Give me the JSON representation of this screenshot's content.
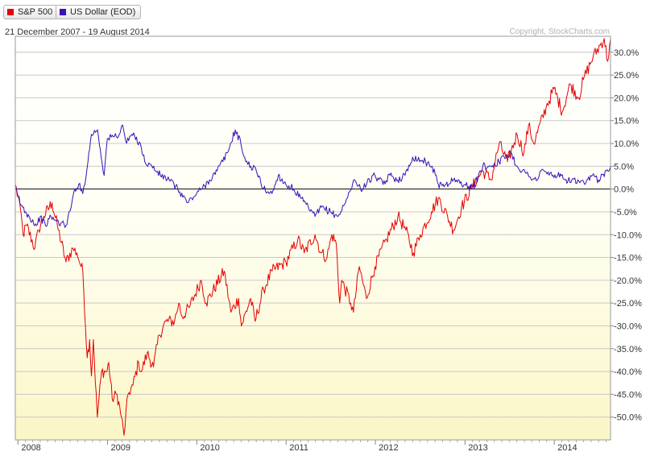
{
  "legend": [
    {
      "name": "S&P 500",
      "color": "#e60000"
    },
    {
      "name": "US Dollar (EOD)",
      "color": "#3a10b8"
    }
  ],
  "date_range": "21 December 2007 - 19 August 2014",
  "copyright": "Copyright, StockCharts.com",
  "chart_data": {
    "type": "line",
    "title": "",
    "xlabel": "",
    "ylabel": "",
    "y_unit": "%",
    "ylim": [
      -55,
      33.5
    ],
    "yticks": [
      30,
      25,
      20,
      15,
      10,
      5,
      0,
      -5,
      -10,
      -15,
      -20,
      -25,
      -30,
      -35,
      -40,
      -45,
      -50
    ],
    "ytick_labels": [
      "30.0%",
      "25.0%",
      "20.0%",
      "15.0%",
      "10.0%",
      "5.0%",
      "0.0%",
      "-5.0%",
      "-10.0%",
      "-15.0%",
      "-20.0%",
      "-25.0%",
      "-30.0%",
      "-35.0%",
      "-40.0%",
      "-45.0%",
      "-50.0%"
    ],
    "xlim": [
      "2007-12-21",
      "2014-08-19"
    ],
    "xticks": [
      "2008-01-01",
      "2009-01-01",
      "2010-01-01",
      "2011-01-01",
      "2012-01-01",
      "2013-01-01",
      "2014-01-01"
    ],
    "xtick_labels": [
      "2008",
      "2009",
      "2010",
      "2011",
      "2012",
      "2013",
      "2014"
    ],
    "grid": true,
    "legend_position": "top-left",
    "series": [
      {
        "name": "S&P 500",
        "color": "#e60000",
        "points": [
          [
            "2007-12-21",
            1
          ],
          [
            "2008-01-10",
            -4
          ],
          [
            "2008-01-22",
            -10
          ],
          [
            "2008-02-05",
            -8
          ],
          [
            "2008-03-10",
            -13
          ],
          [
            "2008-03-25",
            -9
          ],
          [
            "2008-04-15",
            -6
          ],
          [
            "2008-05-19",
            -3
          ],
          [
            "2008-06-10",
            -8
          ],
          [
            "2008-07-15",
            -16
          ],
          [
            "2008-08-12",
            -13
          ],
          [
            "2008-08-29",
            -14
          ],
          [
            "2008-09-15",
            -17
          ],
          [
            "2008-09-22",
            -18
          ],
          [
            "2008-10-10",
            -37
          ],
          [
            "2008-10-20",
            -33
          ],
          [
            "2008-10-27",
            -41
          ],
          [
            "2008-11-04",
            -33
          ],
          [
            "2008-11-20",
            -50
          ],
          [
            "2008-12-08",
            -40
          ],
          [
            "2008-12-30",
            -40
          ],
          [
            "2009-01-06",
            -38
          ],
          [
            "2009-01-20",
            -46
          ],
          [
            "2009-02-09",
            -45
          ],
          [
            "2009-02-27",
            -50
          ],
          [
            "2009-03-09",
            -54
          ],
          [
            "2009-03-26",
            -45
          ],
          [
            "2009-04-15",
            -43
          ],
          [
            "2009-05-08",
            -38
          ],
          [
            "2009-05-20",
            -40
          ],
          [
            "2009-06-12",
            -36
          ],
          [
            "2009-07-08",
            -39
          ],
          [
            "2009-07-31",
            -32
          ],
          [
            "2009-08-28",
            -29
          ],
          [
            "2009-10-02",
            -29
          ],
          [
            "2009-10-19",
            -25
          ],
          [
            "2009-11-02",
            -28
          ],
          [
            "2009-12-01",
            -26
          ],
          [
            "2010-01-19",
            -20
          ],
          [
            "2010-02-08",
            -25
          ],
          [
            "2010-04-23",
            -18
          ],
          [
            "2010-05-20",
            -27
          ],
          [
            "2010-06-21",
            -24
          ],
          [
            "2010-07-02",
            -30
          ],
          [
            "2010-08-09",
            -24
          ],
          [
            "2010-08-27",
            -29
          ],
          [
            "2010-10-01",
            -22
          ],
          [
            "2010-11-05",
            -18
          ],
          [
            "2010-12-31",
            -16
          ],
          [
            "2011-02-18",
            -11
          ],
          [
            "2011-03-16",
            -14
          ],
          [
            "2011-04-29",
            -10
          ],
          [
            "2011-05-24",
            -14
          ],
          [
            "2011-06-17",
            -15
          ],
          [
            "2011-07-07",
            -10
          ],
          [
            "2011-07-25",
            -12
          ],
          [
            "2011-08-08",
            -25
          ],
          [
            "2011-08-16",
            -20
          ],
          [
            "2011-09-22",
            -25
          ],
          [
            "2011-10-03",
            -27
          ],
          [
            "2011-10-27",
            -17
          ],
          [
            "2011-11-25",
            -24
          ],
          [
            "2011-12-30",
            -17
          ],
          [
            "2012-02-15",
            -11
          ],
          [
            "2012-04-02",
            -6
          ],
          [
            "2012-05-04",
            -9
          ],
          [
            "2012-06-04",
            -14
          ],
          [
            "2012-07-02",
            -10
          ],
          [
            "2012-08-17",
            -5
          ],
          [
            "2012-09-14",
            -2
          ],
          [
            "2012-10-22",
            -6
          ],
          [
            "2012-11-15",
            -9
          ],
          [
            "2012-12-18",
            -4
          ],
          [
            "2013-01-25",
            0
          ],
          [
            "2013-03-14",
            4
          ],
          [
            "2013-04-18",
            2
          ],
          [
            "2013-05-21",
            10
          ],
          [
            "2013-06-24",
            6
          ],
          [
            "2013-08-02",
            12
          ],
          [
            "2013-08-30",
            8
          ],
          [
            "2013-09-18",
            14
          ],
          [
            "2013-10-09",
            10
          ],
          [
            "2013-11-29",
            18
          ],
          [
            "2013-12-31",
            22
          ],
          [
            "2014-02-03",
            17
          ],
          [
            "2014-03-07",
            23
          ],
          [
            "2014-04-11",
            20
          ],
          [
            "2014-04-30",
            24
          ],
          [
            "2014-06-09",
            29
          ],
          [
            "2014-07-24",
            33
          ],
          [
            "2014-08-07",
            28
          ],
          [
            "2014-08-19",
            33
          ]
        ]
      },
      {
        "name": "US Dollar (EOD)",
        "color": "#3a10b8",
        "points": [
          [
            "2007-12-21",
            0
          ],
          [
            "2008-01-08",
            -3
          ],
          [
            "2008-02-01",
            -5
          ],
          [
            "2008-02-15",
            -6
          ],
          [
            "2008-03-17",
            -8
          ],
          [
            "2008-04-01",
            -6
          ],
          [
            "2008-04-22",
            -8
          ],
          [
            "2008-05-15",
            -6
          ],
          [
            "2008-06-05",
            -7
          ],
          [
            "2008-07-15",
            -8
          ],
          [
            "2008-08-05",
            -4
          ],
          [
            "2008-08-20",
            0
          ],
          [
            "2008-09-05",
            1
          ],
          [
            "2008-09-22",
            -1
          ],
          [
            "2008-10-13",
            6
          ],
          [
            "2008-10-27",
            12
          ],
          [
            "2008-11-21",
            13
          ],
          [
            "2008-12-18",
            3
          ],
          [
            "2008-12-31",
            11
          ],
          [
            "2009-02-18",
            12
          ],
          [
            "2009-03-04",
            14
          ],
          [
            "2009-03-20",
            10
          ],
          [
            "2009-04-10",
            12
          ],
          [
            "2009-05-15",
            10
          ],
          [
            "2009-06-02",
            6
          ],
          [
            "2009-07-01",
            5
          ],
          [
            "2009-08-05",
            3
          ],
          [
            "2009-09-10",
            2
          ],
          [
            "2009-10-15",
            0
          ],
          [
            "2009-11-25",
            -3
          ],
          [
            "2009-12-31",
            -1
          ],
          [
            "2010-01-20",
            0
          ],
          [
            "2010-02-22",
            2
          ],
          [
            "2010-03-25",
            4
          ],
          [
            "2010-05-07",
            8
          ],
          [
            "2010-06-07",
            13
          ],
          [
            "2010-06-30",
            10
          ],
          [
            "2010-07-20",
            6
          ],
          [
            "2010-08-10",
            5
          ],
          [
            "2010-09-01",
            4
          ],
          [
            "2010-10-01",
            0
          ],
          [
            "2010-11-04",
            -1
          ],
          [
            "2010-11-30",
            3
          ],
          [
            "2010-12-31",
            1
          ],
          [
            "2011-02-01",
            0
          ],
          [
            "2011-03-01",
            -2
          ],
          [
            "2011-04-29",
            -6
          ],
          [
            "2011-05-25",
            -4
          ],
          [
            "2011-07-01",
            -5
          ],
          [
            "2011-08-01",
            -6
          ],
          [
            "2011-09-01",
            -3
          ],
          [
            "2011-10-04",
            2
          ],
          [
            "2011-11-01",
            0
          ],
          [
            "2011-12-30",
            3
          ],
          [
            "2012-02-01",
            1
          ],
          [
            "2012-03-01",
            3
          ],
          [
            "2012-04-01",
            2
          ],
          [
            "2012-05-01",
            3
          ],
          [
            "2012-06-01",
            7
          ],
          [
            "2012-07-24",
            6
          ],
          [
            "2012-08-20",
            5
          ],
          [
            "2012-09-14",
            1
          ],
          [
            "2012-10-15",
            1
          ],
          [
            "2012-11-15",
            2
          ],
          [
            "2012-12-31",
            1
          ],
          [
            "2013-02-01",
            0
          ],
          [
            "2013-03-15",
            5
          ],
          [
            "2013-04-15",
            5
          ],
          [
            "2013-05-20",
            6
          ],
          [
            "2013-07-08",
            8
          ],
          [
            "2013-08-01",
            5
          ],
          [
            "2013-09-17",
            3
          ],
          [
            "2013-10-24",
            2
          ],
          [
            "2013-11-08",
            4
          ],
          [
            "2013-12-27",
            3
          ],
          [
            "2014-01-15",
            3
          ],
          [
            "2014-02-14",
            2
          ],
          [
            "2014-03-14",
            2
          ],
          [
            "2014-05-06",
            1
          ],
          [
            "2014-06-06",
            3
          ],
          [
            "2014-07-01",
            2
          ],
          [
            "2014-08-01",
            4
          ],
          [
            "2014-08-19",
            5
          ]
        ]
      }
    ]
  }
}
